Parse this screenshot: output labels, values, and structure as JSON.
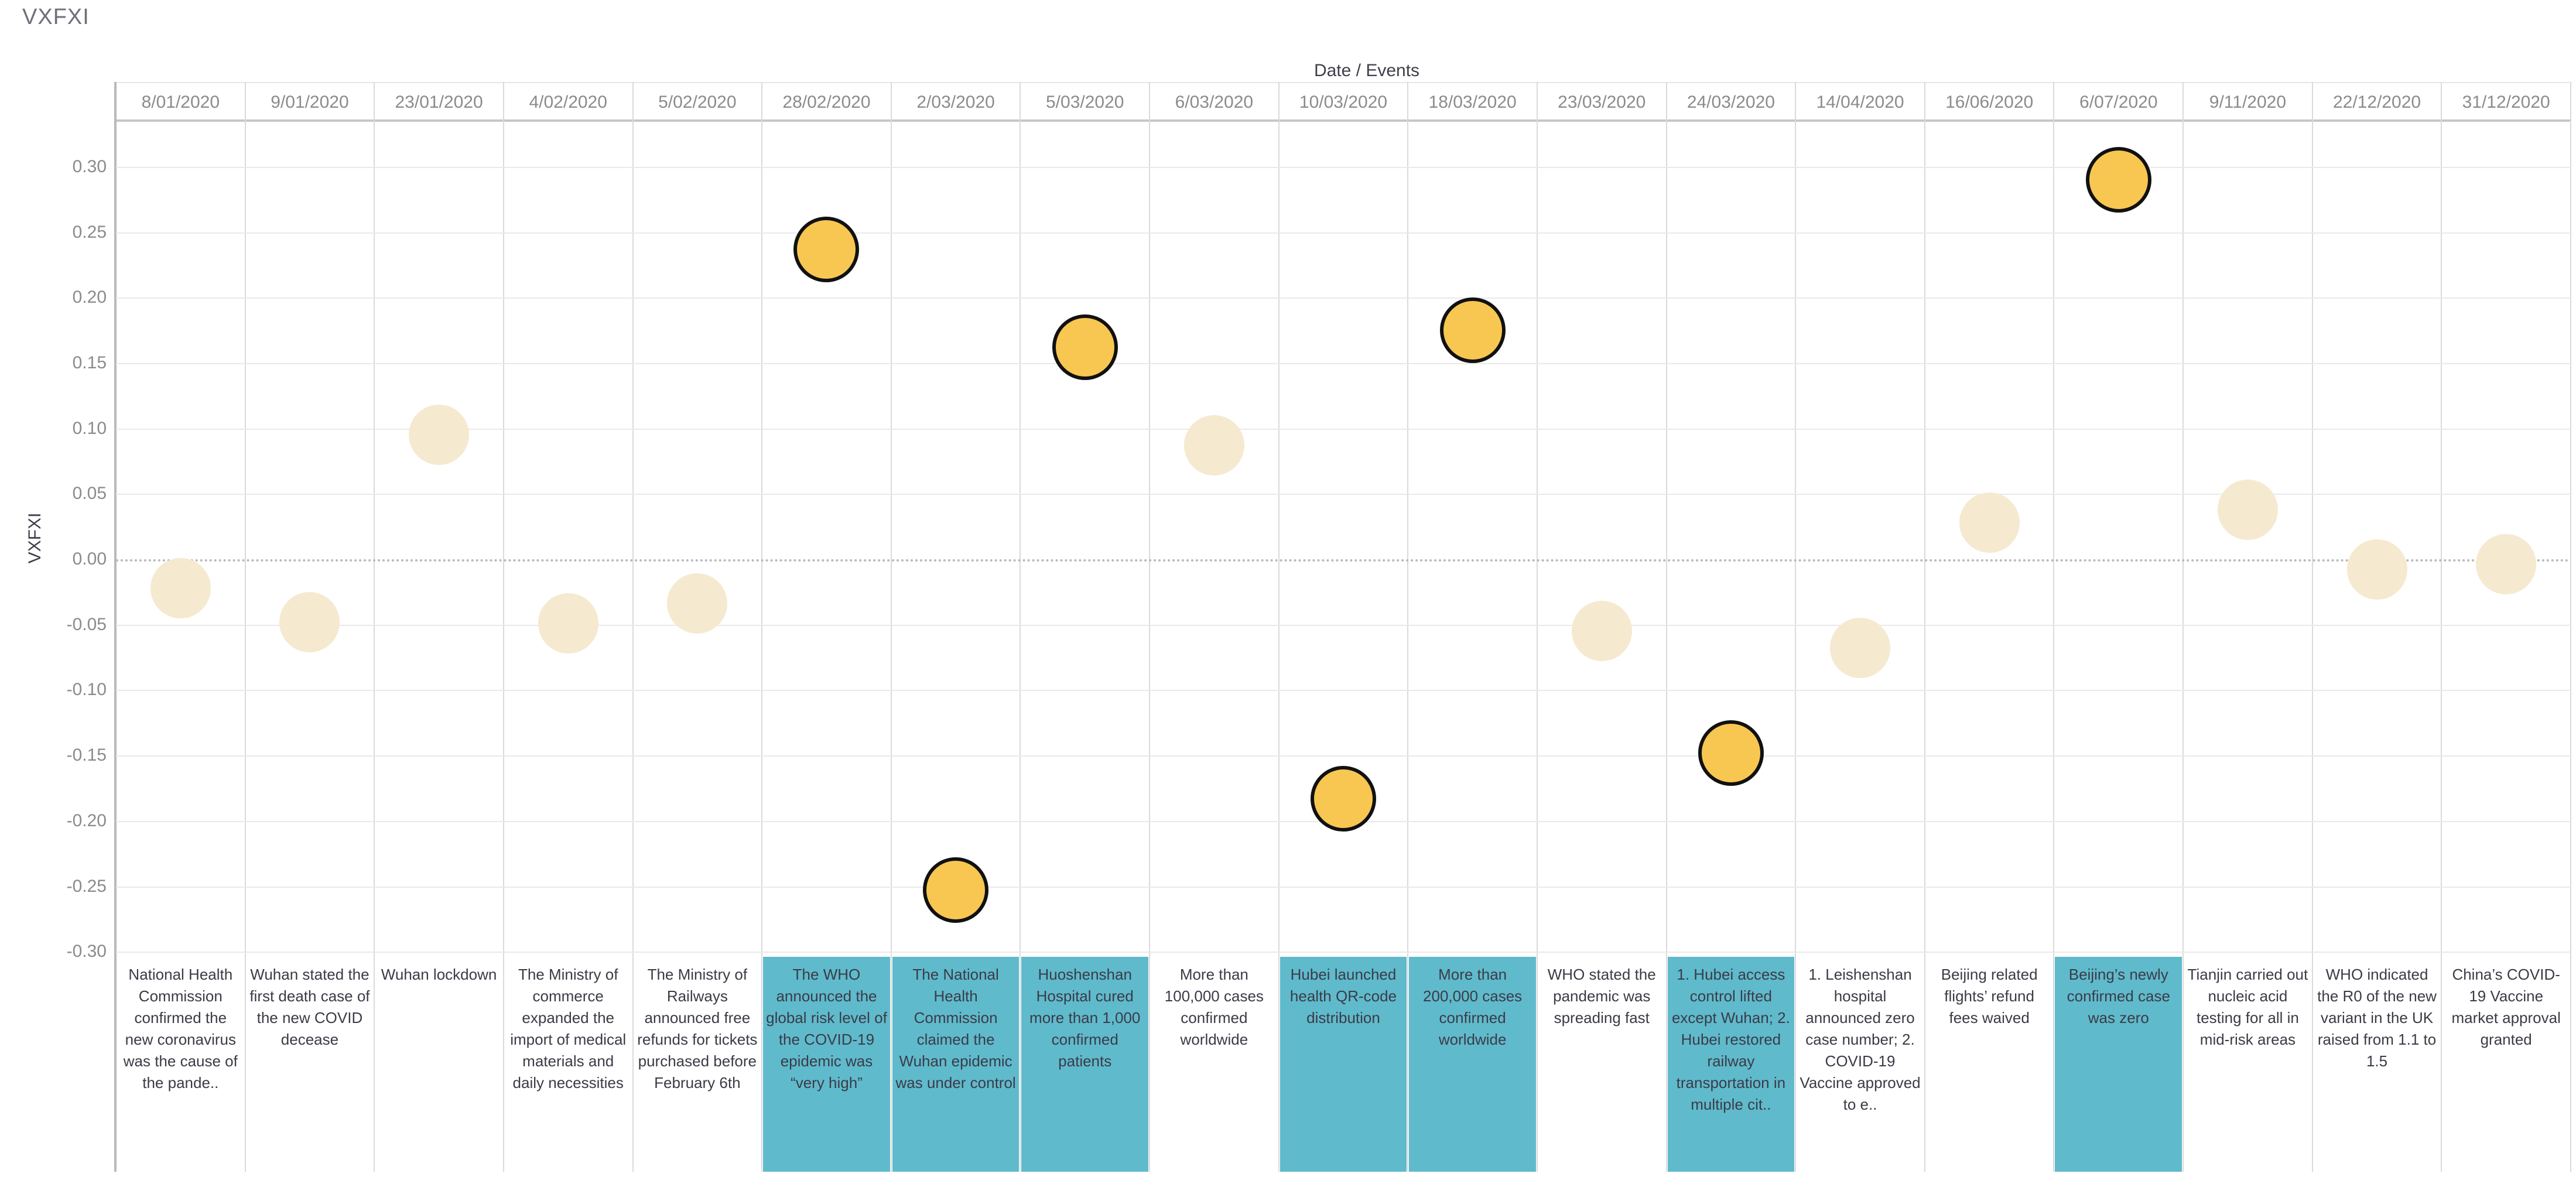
{
  "page": {
    "title": "VXFXI"
  },
  "chart": {
    "top_axis_title": "Date / Events",
    "y_axis_title": "VXFXI"
  },
  "chart_data": {
    "type": "scatter",
    "title": "VXFXI",
    "xlabel": "Date / Events",
    "ylabel": "VXFXI",
    "ylim": [
      -0.32,
      0.335
    ],
    "grid": true,
    "zero_line": "dotted",
    "y_ticks": [
      0.3,
      0.25,
      0.2,
      0.15,
      0.1,
      0.05,
      0.0,
      -0.05,
      -0.1,
      -0.15,
      -0.2,
      -0.25,
      -0.3
    ],
    "y_tick_labels": [
      "0.30",
      "0.25",
      "0.20",
      "0.15",
      "0.10",
      "0.05",
      "0.00",
      "-0.05",
      "-0.10",
      "-0.15",
      "-0.20",
      "-0.25",
      "-0.30"
    ],
    "colors": {
      "point_default": "#F5E9D0",
      "point_highlight": "#F8C751",
      "point_highlight_stroke": "#111111",
      "event_highlight_bg": "#5FBACC",
      "event_default_bg": "#FFFFFF"
    },
    "points": [
      {
        "date": "8/01/2020",
        "value": -0.022,
        "highlighted": false,
        "event": "National Health Commission confirmed the new coronavirus was the cause of the pande..",
        "event_highlighted": false
      },
      {
        "date": "9/01/2020",
        "value": -0.048,
        "highlighted": false,
        "event": "Wuhan stated the first death case of the new COVID decease",
        "event_highlighted": false
      },
      {
        "date": "23/01/2020",
        "value": 0.095,
        "highlighted": false,
        "event": "Wuhan lockdown",
        "event_highlighted": false
      },
      {
        "date": "4/02/2020",
        "value": -0.049,
        "highlighted": false,
        "event": "The Ministry of commerce expanded the import of medical materials and daily necessities",
        "event_highlighted": false
      },
      {
        "date": "5/02/2020",
        "value": -0.034,
        "highlighted": false,
        "event": "The Ministry of Railways announced free refunds for tickets purchased before February 6th",
        "event_highlighted": false
      },
      {
        "date": "28/02/2020",
        "value": 0.237,
        "highlighted": true,
        "event": "The WHO announced the global risk level of the COVID-19 epidemic was “very high”",
        "event_highlighted": true
      },
      {
        "date": "2/03/2020",
        "value": -0.253,
        "highlighted": true,
        "event": "The National Health Commission claimed the Wuhan epidemic was under control",
        "event_highlighted": true
      },
      {
        "date": "5/03/2020",
        "value": 0.162,
        "highlighted": true,
        "event": "Huoshenshan Hospital cured more than 1,000 confirmed patients",
        "event_highlighted": true
      },
      {
        "date": "6/03/2020",
        "value": 0.087,
        "highlighted": false,
        "event": "More than 100,000 cases confirmed worldwide",
        "event_highlighted": false
      },
      {
        "date": "10/03/2020",
        "value": -0.183,
        "highlighted": true,
        "event": "Hubei launched health QR-code distribution",
        "event_highlighted": true
      },
      {
        "date": "18/03/2020",
        "value": 0.175,
        "highlighted": true,
        "event": "More than 200,000 cases confirmed worldwide",
        "event_highlighted": true
      },
      {
        "date": "23/03/2020",
        "value": -0.055,
        "highlighted": false,
        "event": "WHO stated the pandemic was spreading fast",
        "event_highlighted": false
      },
      {
        "date": "24/03/2020",
        "value": -0.148,
        "highlighted": true,
        "event": "1. Hubei access control lifted except Wuhan; 2. Hubei restored railway transportation in multiple cit..",
        "event_highlighted": true
      },
      {
        "date": "14/04/2020",
        "value": -0.068,
        "highlighted": false,
        "event": "1. Leishenshan hospital announced zero case number; 2. COVID-19 Vaccine approved to e..",
        "event_highlighted": false
      },
      {
        "date": "16/06/2020",
        "value": 0.028,
        "highlighted": false,
        "event": "Beijing related flights’ refund fees waived",
        "event_highlighted": false
      },
      {
        "date": "6/07/2020",
        "value": 0.29,
        "highlighted": true,
        "event": "Beijing’s newly confirmed case was zero",
        "event_highlighted": true
      },
      {
        "date": "9/11/2020",
        "value": 0.038,
        "highlighted": false,
        "event": "Tianjin carried out nucleic acid testing for all in mid-risk areas",
        "event_highlighted": false
      },
      {
        "date": "22/12/2020",
        "value": -0.008,
        "highlighted": false,
        "event": "WHO indicated the R0 of the new variant in the UK raised from 1.1 to 1.5",
        "event_highlighted": false
      },
      {
        "date": "31/12/2020",
        "value": -0.004,
        "highlighted": false,
        "event": "China’s COVID-19 Vaccine market approval granted",
        "event_highlighted": false
      }
    ]
  }
}
